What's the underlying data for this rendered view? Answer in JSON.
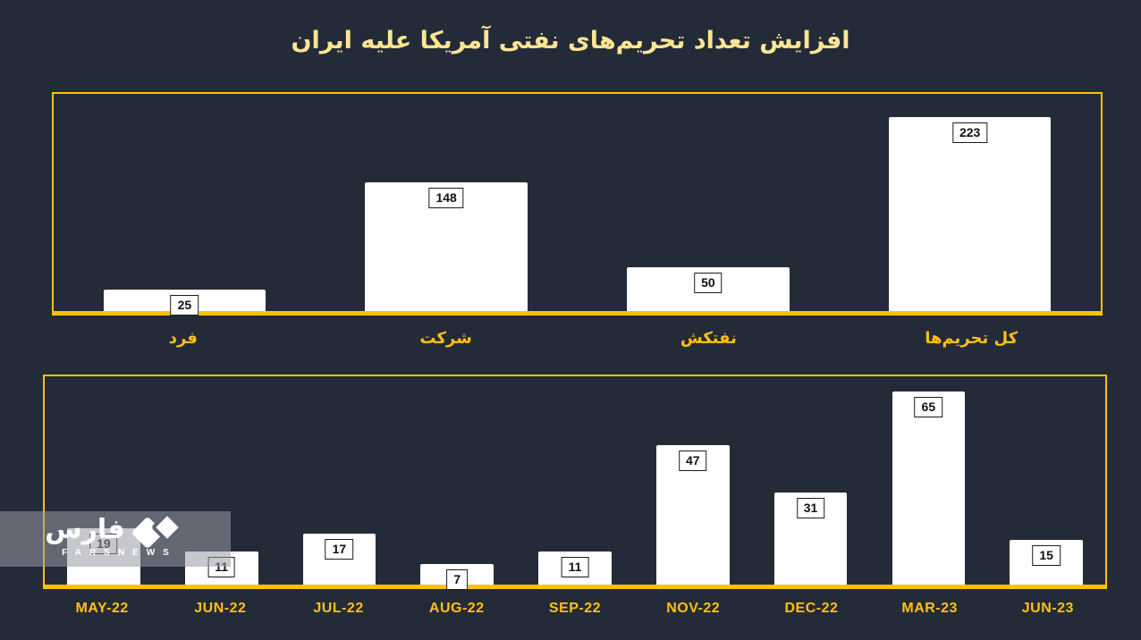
{
  "title": "افزایش تعداد تحریم‌های نفتی آمریکا علیه ایران",
  "colors": {
    "background": "#242B38",
    "accent": "#FFC010",
    "title_text": "#FFE593",
    "bar_fill": "#FFFFFF",
    "data_label_text": "#111111",
    "watermark_overlay": "rgba(151,155,166,0.55)"
  },
  "watermark": {
    "farsi_wordmark": "فارس",
    "latin_wordmark": "FARSNEWS"
  },
  "chart_data": [
    {
      "type": "bar",
      "name": "sanctions-by-target",
      "categories": [
        "فرد",
        "شرکت",
        "نفتکش",
        "کل تحریم‌ها"
      ],
      "values": [
        25,
        148,
        50,
        223
      ],
      "ylim": [
        0,
        250
      ],
      "bar_color": "#FFFFFF",
      "data_labels": "boxed-inside-top",
      "grid": false,
      "legend": false
    },
    {
      "type": "bar",
      "name": "sanctions-by-month",
      "categories": [
        "MAY-22",
        "JUN-22",
        "JUL-22",
        "AUG-22",
        "SEP-22",
        "NOV-22",
        "DEC-22",
        "MAR-23",
        "JUN-23"
      ],
      "values": [
        19,
        11,
        17,
        7,
        11,
        47,
        31,
        65,
        15
      ],
      "ylim": [
        0,
        70
      ],
      "bar_color": "#FFFFFF",
      "data_labels": "boxed-inside-top",
      "grid": false,
      "legend": false
    }
  ]
}
